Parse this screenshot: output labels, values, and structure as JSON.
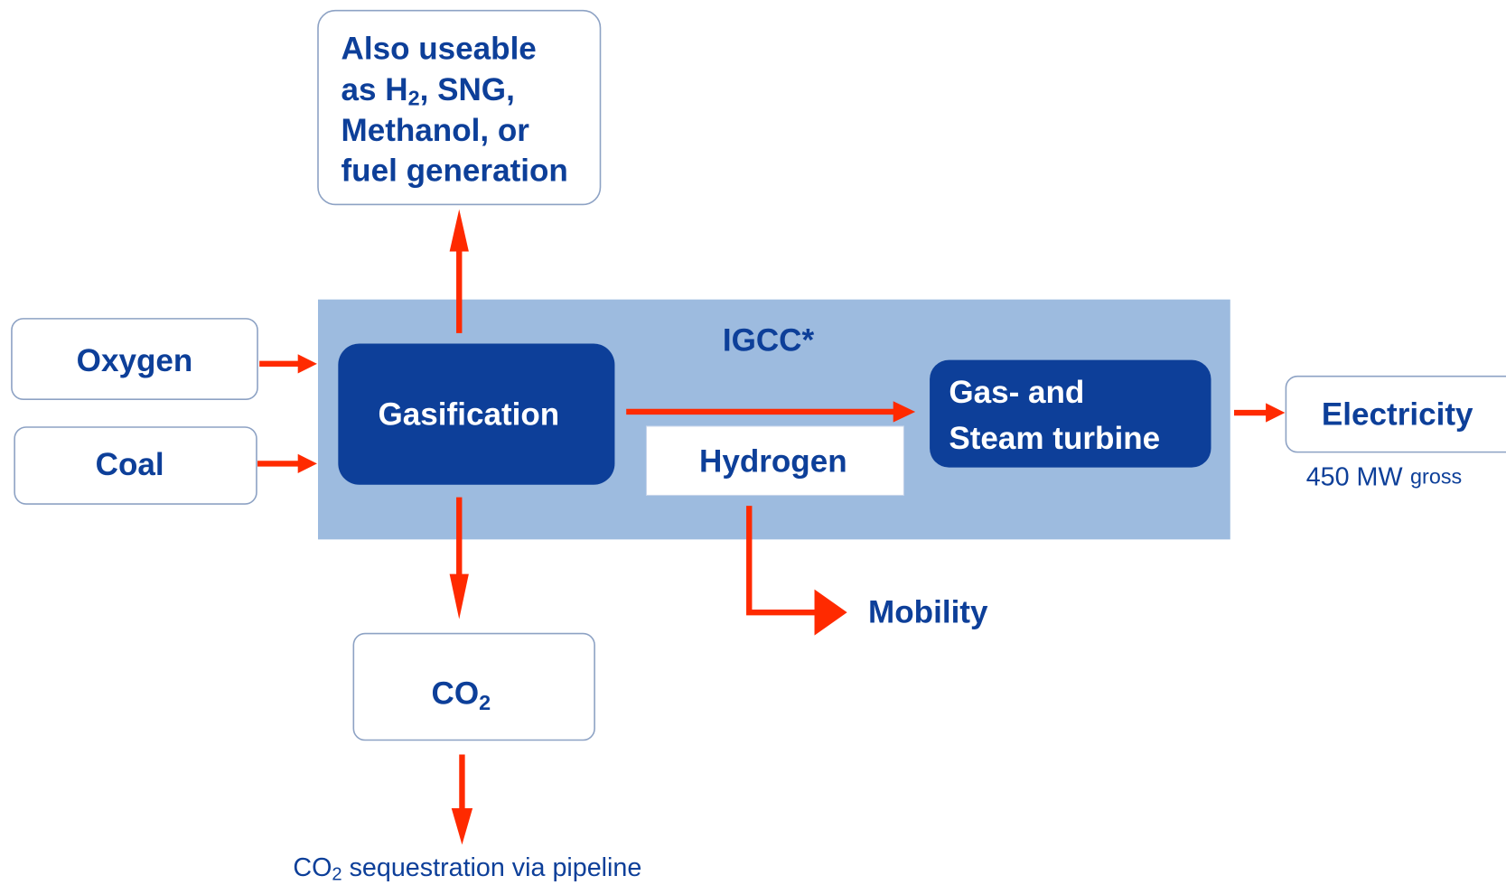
{
  "nodes": {
    "also_useable": {
      "line1": "Also useable",
      "line2": {
        "before": "as H",
        "sub": "2",
        "after": ", SNG,"
      },
      "line3": "Methanol, or",
      "line4": "fuel generation"
    },
    "oxygen": "Oxygen",
    "coal": "Coal",
    "igcc": "IGCC*",
    "gasification": "Gasification",
    "hydrogen": "Hydrogen",
    "turbine": {
      "line1": "Gas- and",
      "line2": "Steam turbine"
    },
    "electricity": "Electricity",
    "electricity_note": {
      "value": "450 MW",
      "unit": "gross"
    },
    "mobility": "Mobility",
    "co2": {
      "text": "CO",
      "sub": "2"
    },
    "sequestration": {
      "before": "CO",
      "sub": "2",
      "after": " sequestration via pipeline"
    }
  }
}
